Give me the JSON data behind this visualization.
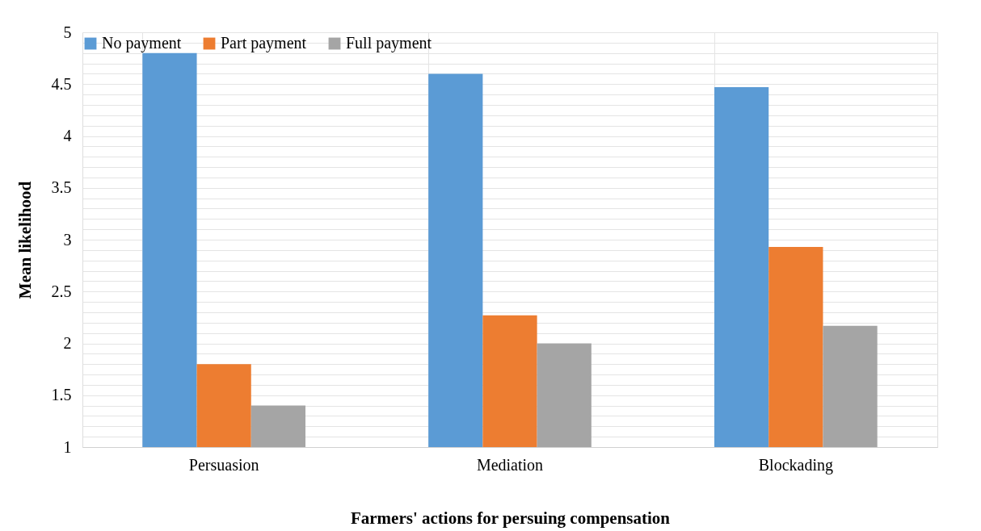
{
  "chart_data": {
    "type": "bar",
    "xlabel": "Farmers' actions for persuing compensation",
    "ylabel": "Mean likelihood",
    "categories": [
      "Persuasion",
      "Mediation",
      "Blockading"
    ],
    "series": [
      {
        "name": "No payment",
        "color": "#5b9bd5",
        "values": [
          4.8,
          4.6,
          4.47
        ]
      },
      {
        "name": "Part payment",
        "color": "#ed7d31",
        "values": [
          1.8,
          2.27,
          2.93
        ]
      },
      {
        "name": "Full payment",
        "color": "#a5a5a5",
        "values": [
          1.4,
          2.0,
          2.17
        ]
      }
    ],
    "ylim": [
      1,
      5
    ],
    "yticks": [
      1,
      {
        "value": 1.1,
        "label": null
      },
      {
        "value": 1.2,
        "label": null
      },
      {
        "value": 1.3,
        "label": null
      },
      {
        "value": 1.4,
        "label": null
      },
      1.5,
      {
        "value": 1.6,
        "label": null
      },
      {
        "value": 1.7,
        "label": null
      },
      {
        "value": 1.8,
        "label": null
      },
      {
        "value": 1.9,
        "label": null
      },
      2,
      {
        "value": 2.1,
        "label": null
      },
      {
        "value": 2.2,
        "label": null
      },
      {
        "value": 2.3,
        "label": null
      },
      {
        "value": 2.4,
        "label": null
      },
      2.5,
      {
        "value": 2.6,
        "label": null
      },
      {
        "value": 2.7,
        "label": null
      },
      {
        "value": 2.8,
        "label": null
      },
      {
        "value": 2.9,
        "label": null
      },
      3,
      {
        "value": 3.1,
        "label": null
      },
      {
        "value": 3.2,
        "label": null
      },
      {
        "value": 3.3,
        "label": null
      },
      {
        "value": 3.4,
        "label": null
      },
      3.5,
      {
        "value": 3.6,
        "label": null
      },
      {
        "value": 3.7,
        "label": null
      },
      {
        "value": 3.8,
        "label": null
      },
      {
        "value": 3.9,
        "label": null
      },
      4,
      {
        "value": 4.1,
        "label": null
      },
      {
        "value": 4.2,
        "label": null
      },
      {
        "value": 4.3,
        "label": null
      },
      {
        "value": 4.4,
        "label": null
      },
      4.5,
      {
        "value": 4.6,
        "label": null
      },
      {
        "value": 4.7,
        "label": null
      },
      {
        "value": 4.8,
        "label": null
      },
      {
        "value": 4.9,
        "label": null
      },
      5
    ],
    "grid": true,
    "legend": "top"
  }
}
